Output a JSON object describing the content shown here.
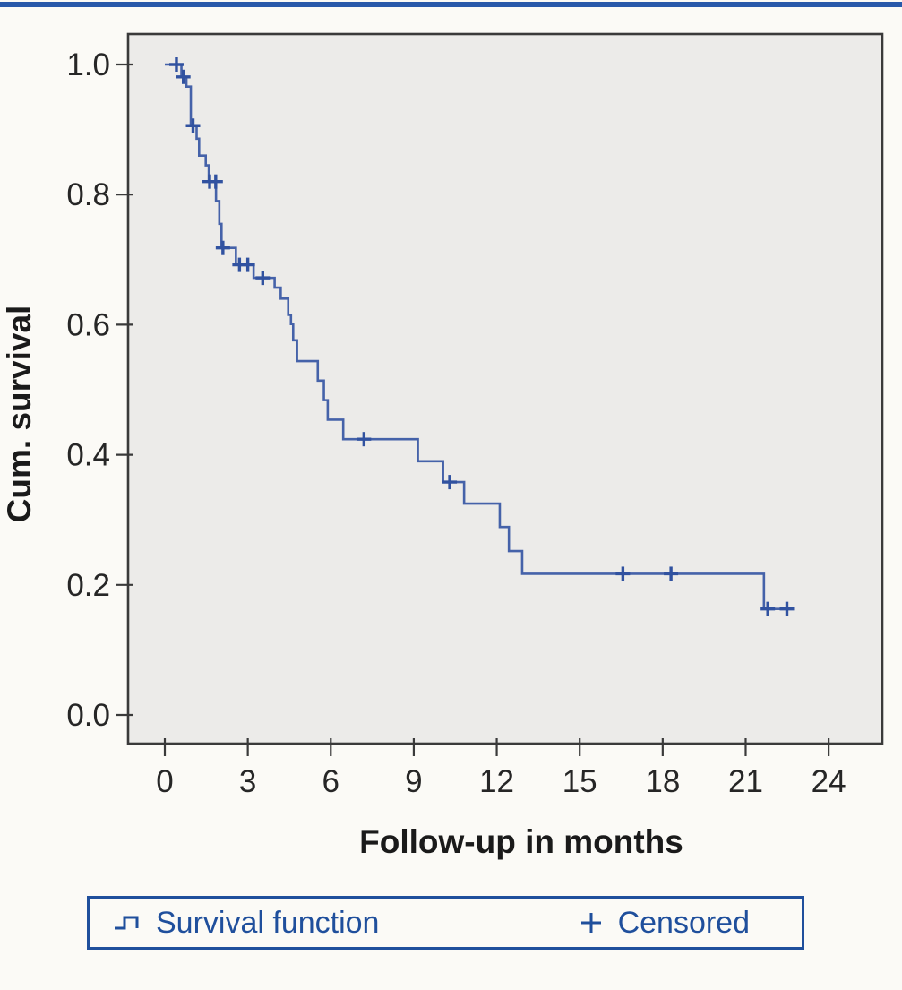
{
  "page": {
    "top_bar_color": "#2859aa",
    "background_color": "#fbfaf6"
  },
  "chart_data": {
    "type": "line",
    "subtype": "kaplan-meier-step-function",
    "title": "",
    "xlabel": "Follow-up in months",
    "ylabel": "Cum. survival",
    "x_ticks": [
      0,
      3,
      6,
      9,
      12,
      15,
      18,
      21,
      24
    ],
    "y_ticks": [
      {
        "label": "0.0",
        "value": 0.0
      },
      {
        "label": "0.2",
        "value": 0.2
      },
      {
        "label": "0.4",
        "value": 0.4
      },
      {
        "label": "0.6",
        "value": 0.6
      },
      {
        "label": "0.8",
        "value": 0.8
      },
      {
        "label": "1.0",
        "value": 1.0
      }
    ],
    "xlim": [
      -1.33,
      25.93
    ],
    "ylim": [
      -0.045,
      1.047
    ],
    "grid": false,
    "plot_bg": "#ecebe9",
    "frame_color": "#3a3a3a",
    "line_color": "#4562a9",
    "censor_color": "#3152a0",
    "survival_steps": [
      [
        0.0,
        1.0
      ],
      [
        0.6,
        0.981
      ],
      [
        0.78,
        0.966
      ],
      [
        0.94,
        0.906
      ],
      [
        1.15,
        0.886
      ],
      [
        1.24,
        0.86
      ],
      [
        1.48,
        0.845
      ],
      [
        1.59,
        0.82
      ],
      [
        1.85,
        0.79
      ],
      [
        1.97,
        0.755
      ],
      [
        2.05,
        0.718
      ],
      [
        2.57,
        0.692
      ],
      [
        3.21,
        0.672
      ],
      [
        3.97,
        0.657
      ],
      [
        4.19,
        0.64
      ],
      [
        4.46,
        0.615
      ],
      [
        4.56,
        0.601
      ],
      [
        4.64,
        0.576
      ],
      [
        4.78,
        0.544
      ],
      [
        5.53,
        0.514
      ],
      [
        5.75,
        0.484
      ],
      [
        5.89,
        0.454
      ],
      [
        6.45,
        0.424
      ],
      [
        9.15,
        0.39
      ],
      [
        10.06,
        0.358
      ],
      [
        10.82,
        0.325
      ],
      [
        12.11,
        0.289
      ],
      [
        12.44,
        0.252
      ],
      [
        12.92,
        0.217
      ],
      [
        21.66,
        0.163
      ]
    ],
    "curve_end_time": 22.65,
    "censored": [
      [
        0.42,
        1.0
      ],
      [
        0.67,
        0.981
      ],
      [
        1.02,
        0.906
      ],
      [
        1.62,
        0.82
      ],
      [
        1.84,
        0.82
      ],
      [
        2.1,
        0.718
      ],
      [
        2.7,
        0.692
      ],
      [
        3.0,
        0.692
      ],
      [
        3.54,
        0.672
      ],
      [
        7.2,
        0.424
      ],
      [
        10.3,
        0.358
      ],
      [
        16.56,
        0.217
      ],
      [
        18.3,
        0.217
      ],
      [
        21.8,
        0.163
      ],
      [
        22.49,
        0.163
      ]
    ],
    "legend": {
      "position": "bottom",
      "border_color": "#1f4f9c",
      "text_color": "#1f4f9c",
      "items": [
        {
          "symbol": "step-line",
          "label": "Survival function"
        },
        {
          "symbol": "plus",
          "label": "Censored"
        }
      ]
    }
  }
}
